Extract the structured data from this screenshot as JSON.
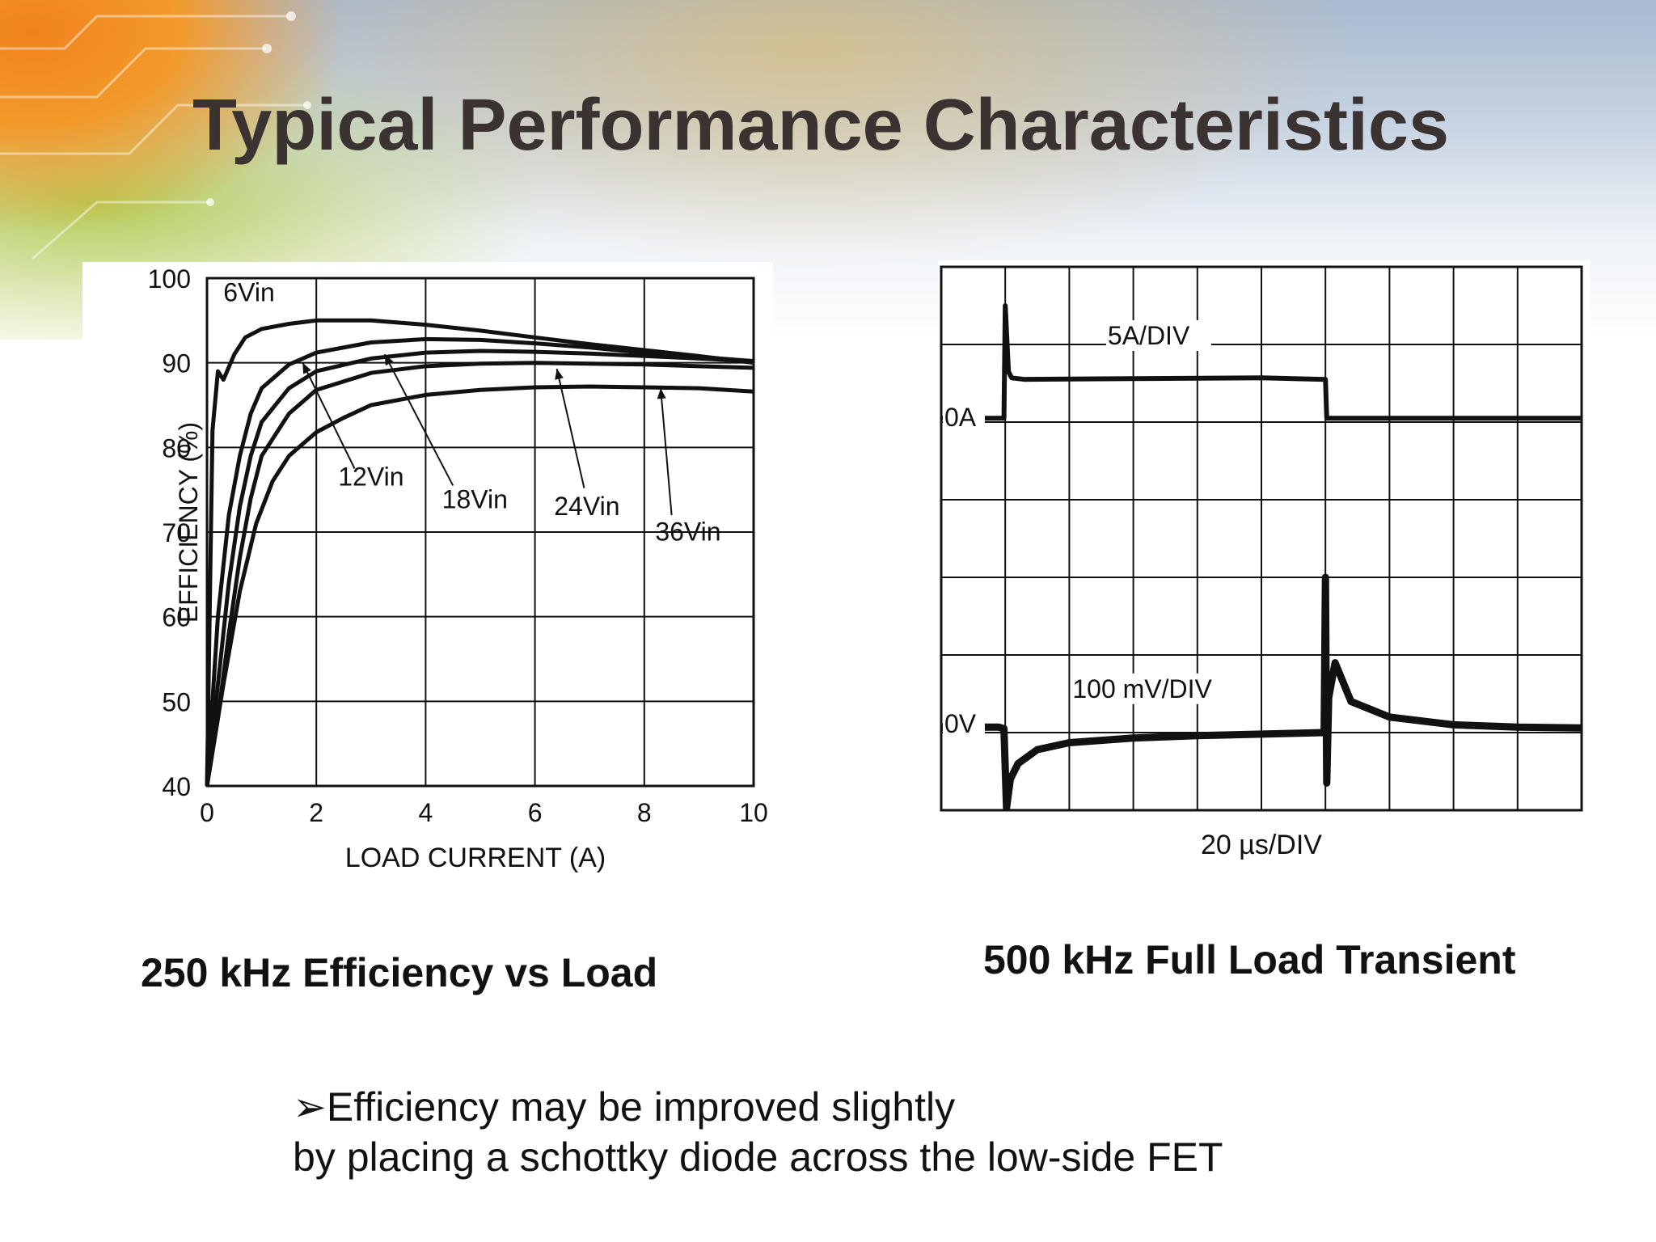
{
  "slide": {
    "title": "Typical Performance Characteristics",
    "bullet": {
      "marker": "➢",
      "line1": "Efficiency may be improved slightly",
      "line2": "by placing a schottky diode across the low-side FET"
    }
  },
  "chart_data": [
    {
      "type": "line",
      "caption": "250 kHz Efficiency vs Load",
      "xlabel": "LOAD CURRENT (A)",
      "ylabel": "EFFICIENCY (%)",
      "xlim": [
        0,
        10
      ],
      "ylim": [
        40,
        100
      ],
      "xticks": [
        "0",
        "2",
        "4",
        "6",
        "8",
        "10"
      ],
      "yticks": [
        "40",
        "50",
        "60",
        "70",
        "80",
        "90",
        "100"
      ],
      "grid": true,
      "series": [
        {
          "name": "6Vin",
          "x": [
            0,
            0.1,
            0.2,
            0.3,
            0.5,
            0.7,
            1,
            1.5,
            2,
            3,
            4,
            5,
            6,
            7,
            8,
            9,
            10
          ],
          "y": [
            40,
            82,
            89,
            88,
            91,
            93,
            94,
            94.6,
            95,
            95,
            94.5,
            93.8,
            93,
            92.2,
            91.5,
            90.8,
            90
          ]
        },
        {
          "name": "12Vin",
          "x": [
            0,
            0.2,
            0.4,
            0.6,
            0.8,
            1,
            1.5,
            2,
            3,
            4,
            5,
            6,
            7,
            8,
            9,
            10
          ],
          "y": [
            40,
            60,
            72,
            79,
            84,
            87,
            89.8,
            91.2,
            92.4,
            92.8,
            92.7,
            92.3,
            91.8,
            91.2,
            90.7,
            90.2
          ]
        },
        {
          "name": "18Vin",
          "x": [
            0,
            0.2,
            0.4,
            0.6,
            0.8,
            1,
            1.5,
            2,
            3,
            4,
            5,
            6,
            7,
            8,
            9,
            10
          ],
          "y": [
            40,
            52,
            64,
            73,
            79,
            83,
            87,
            89,
            90.5,
            91.2,
            91.4,
            91.3,
            91.1,
            90.8,
            90.5,
            90.2
          ]
        },
        {
          "name": "24Vin",
          "x": [
            0,
            0.2,
            0.4,
            0.6,
            0.8,
            1,
            1.5,
            2,
            3,
            4,
            5,
            6,
            7,
            8,
            9,
            10
          ],
          "y": [
            40,
            48,
            58,
            67,
            74,
            79,
            84,
            86.8,
            88.8,
            89.6,
            89.9,
            90,
            89.9,
            89.8,
            89.6,
            89.4
          ]
        },
        {
          "name": "36Vin",
          "x": [
            0,
            0.3,
            0.6,
            0.9,
            1.2,
            1.5,
            2,
            2.5,
            3,
            4,
            5,
            6,
            7,
            8,
            9,
            10
          ],
          "y": [
            40,
            52,
            63,
            71,
            76,
            79,
            81.8,
            83.5,
            85,
            86.2,
            86.8,
            87.1,
            87.2,
            87.1,
            87,
            86.6
          ]
        }
      ]
    },
    {
      "type": "line",
      "caption": "500 kHz Full Load Transient",
      "xlabel": "20 µs/DIV",
      "xlim": [
        0,
        10
      ],
      "ylim": [
        0,
        7
      ],
      "grid": true,
      "divisions": {
        "x": 10,
        "y": 7
      },
      "labels": {
        "current_scale": "5A/DIV",
        "current_ref": "0A",
        "voltage_scale": "100 mV/DIV",
        "voltage_ref": "0V"
      },
      "series": [
        {
          "x": [
            0,
            0.98,
            1.0,
            1.05,
            1.1,
            1.3,
            3,
            5,
            6.0,
            6.02,
            6.05,
            8,
            10
          ],
          "y": [
            5.05,
            5.05,
            6.5,
            5.65,
            5.57,
            5.55,
            5.56,
            5.57,
            5.55,
            5.05,
            5.05,
            5.05,
            5.05
          ]
        },
        {
          "x": [
            0,
            0.9,
            0.98,
            1.02,
            1.08,
            1.2,
            1.5,
            2,
            3,
            4,
            5,
            5.98,
            6.0,
            6.02,
            6.05,
            6.15,
            6.25,
            6.4,
            7,
            8,
            9,
            10
          ],
          "y": [
            1.07,
            1.07,
            1.05,
            0.03,
            0.4,
            0.6,
            0.78,
            0.87,
            0.93,
            0.96,
            0.98,
            1.0,
            3.0,
            0.35,
            1.45,
            1.9,
            1.7,
            1.4,
            1.2,
            1.1,
            1.07,
            1.06
          ]
        }
      ]
    }
  ]
}
